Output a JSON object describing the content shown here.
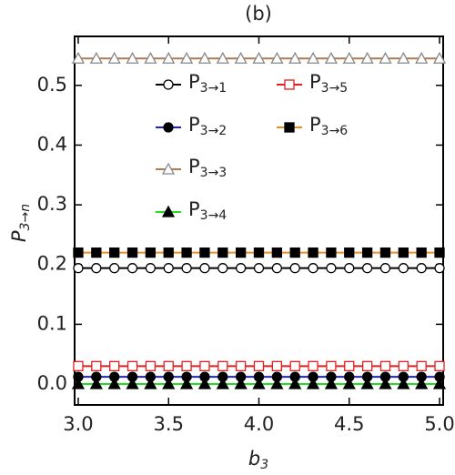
{
  "chart_data": {
    "type": "line",
    "title": "(b)",
    "x_label": "b3",
    "y_label": "P3→n",
    "x": [
      3.0,
      3.1,
      3.2,
      3.3,
      3.4,
      3.5,
      3.6,
      3.7,
      3.8,
      3.9,
      4.0,
      4.1,
      4.2,
      4.3,
      4.4,
      4.5,
      4.6,
      4.7,
      4.8,
      4.9,
      5.0
    ],
    "xlim": [
      2.98,
      5.02
    ],
    "ylim": [
      -0.035,
      0.582
    ],
    "xticks": [
      {
        "value": 3,
        "label": "3.0"
      },
      3.5,
      {
        "value": 4,
        "label": "4.0"
      },
      4.5,
      {
        "value": 5,
        "label": "5.0"
      }
    ],
    "yticks": [
      {
        "value": 0,
        "label": "0.0"
      },
      0.1,
      0.2,
      0.3,
      0.4,
      0.5
    ],
    "series": [
      {
        "name": "P3→1",
        "color": "#000000",
        "marker": "circle-open",
        "marker_color": "#000000",
        "values": [
          0.194,
          0.194,
          0.194,
          0.194,
          0.194,
          0.194,
          0.194,
          0.194,
          0.194,
          0.194,
          0.194,
          0.194,
          0.194,
          0.194,
          0.194,
          0.194,
          0.194,
          0.194,
          0.194,
          0.194,
          0.194
        ]
      },
      {
        "name": "P3→2",
        "color": "#1f1fd6",
        "marker": "circle-filled",
        "marker_color": "#000000",
        "values": [
          0.012,
          0.012,
          0.012,
          0.012,
          0.012,
          0.012,
          0.012,
          0.012,
          0.012,
          0.012,
          0.012,
          0.012,
          0.012,
          0.012,
          0.012,
          0.012,
          0.012,
          0.012,
          0.012,
          0.012,
          0.012
        ]
      },
      {
        "name": "P3→3",
        "color": "#b07a50",
        "marker": "triangle-open",
        "marker_color": "#888888",
        "values": [
          0.545,
          0.545,
          0.545,
          0.545,
          0.545,
          0.545,
          0.545,
          0.545,
          0.545,
          0.545,
          0.545,
          0.545,
          0.545,
          0.545,
          0.545,
          0.545,
          0.545,
          0.545,
          0.545,
          0.545,
          0.545
        ]
      },
      {
        "name": "P3→4",
        "color": "#22dd22",
        "marker": "triangle-filled",
        "marker_color": "#000000",
        "values": [
          0,
          0,
          0,
          0,
          0,
          0,
          0,
          0,
          0,
          0,
          0,
          0,
          0,
          0,
          0,
          0,
          0,
          0,
          0,
          0,
          0
        ]
      },
      {
        "name": "P3→5",
        "color": "#e02020",
        "marker": "square-open",
        "marker_color": "#e02020",
        "values": [
          0.03,
          0.03,
          0.03,
          0.03,
          0.03,
          0.03,
          0.03,
          0.03,
          0.03,
          0.03,
          0.03,
          0.03,
          0.03,
          0.03,
          0.03,
          0.03,
          0.03,
          0.03,
          0.03,
          0.03,
          0.03
        ]
      },
      {
        "name": "P3→6",
        "color": "#f08c1e",
        "marker": "square-filled",
        "marker_color": "#000000",
        "values": [
          0.22,
          0.22,
          0.22,
          0.22,
          0.22,
          0.22,
          0.22,
          0.22,
          0.22,
          0.22,
          0.22,
          0.22,
          0.22,
          0.22,
          0.22,
          0.22,
          0.22,
          0.22,
          0.22,
          0.22,
          0.22
        ]
      }
    ]
  }
}
